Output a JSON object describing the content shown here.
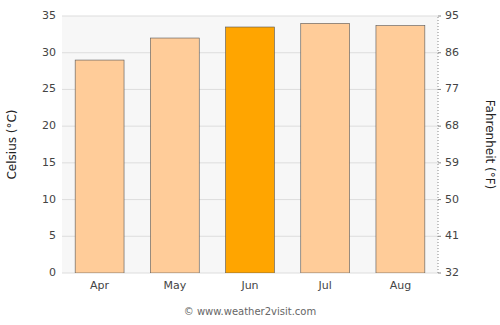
{
  "chart_data": {
    "type": "bar",
    "categories": [
      "Apr",
      "May",
      "Jun",
      "Jul",
      "Aug"
    ],
    "values": [
      29.0,
      32.0,
      33.5,
      34.0,
      33.7
    ],
    "colors": [
      "#FFCC99",
      "#FFCC99",
      "#FFA500",
      "#FFCC99",
      "#FFCC99"
    ],
    "ylabel": "Celsius (°C)",
    "y2label": "Fahrenheit (°F)",
    "ylim": [
      0,
      35
    ],
    "yticks": [
      0,
      5,
      10,
      15,
      20,
      25,
      30,
      35
    ],
    "y2lim": [
      32,
      95
    ],
    "y2ticks": [
      32,
      41,
      50,
      59,
      68,
      77,
      86,
      95
    ],
    "grid": true,
    "annotations": [
      "© www.weather2visit.com"
    ]
  }
}
